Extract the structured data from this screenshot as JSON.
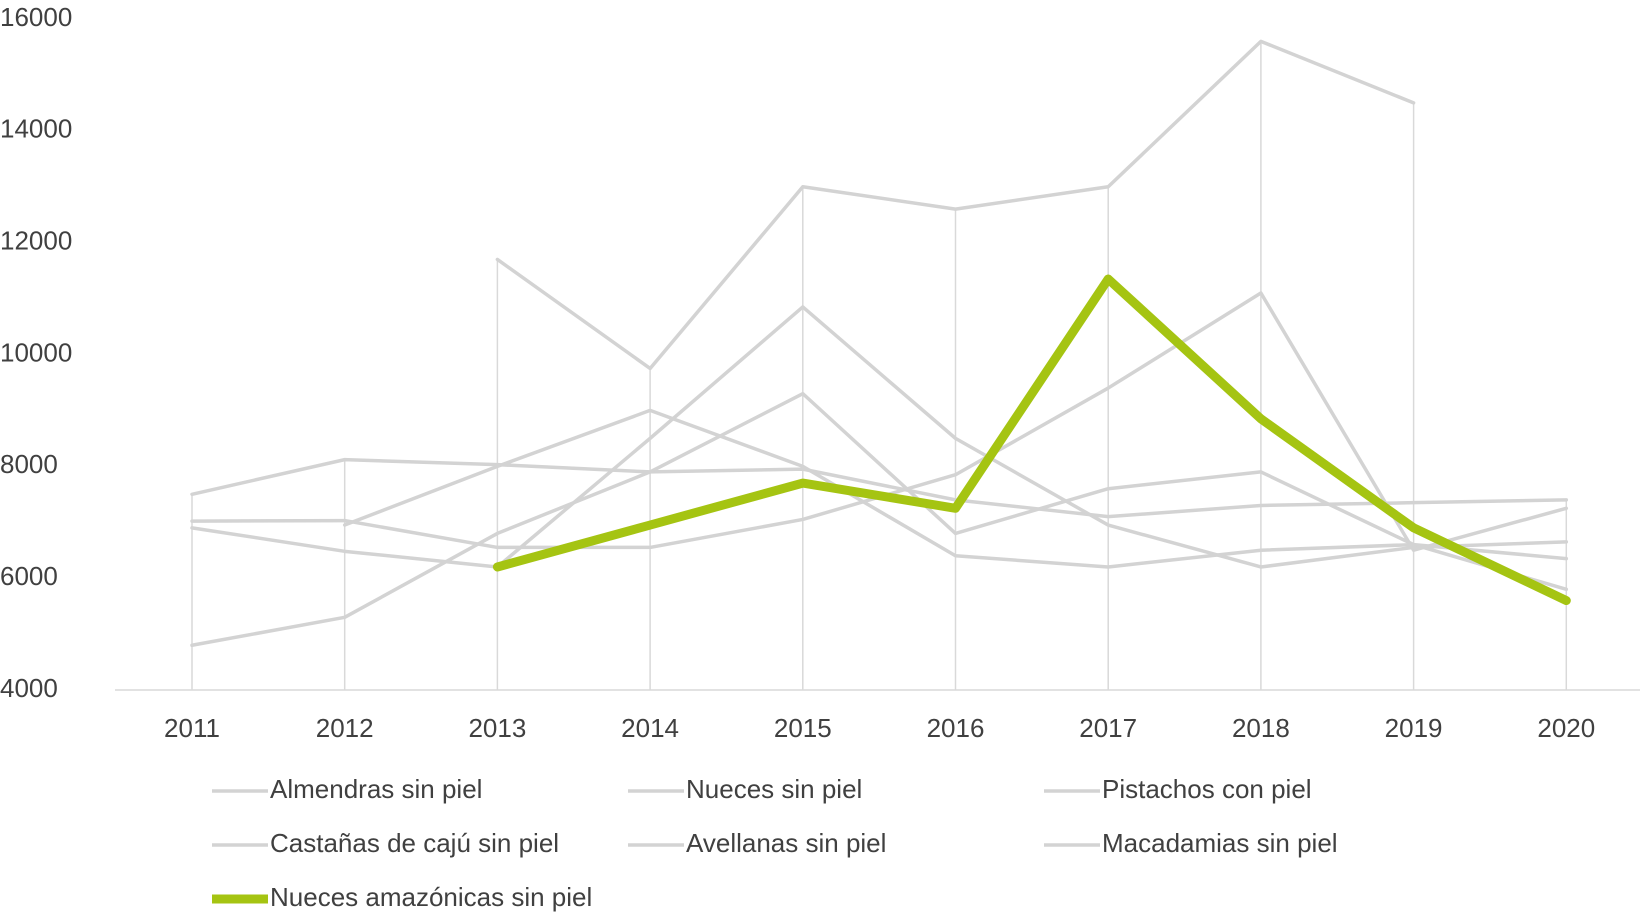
{
  "chart_data": {
    "type": "line",
    "categories": [
      "2011",
      "2012",
      "2013",
      "2014",
      "2015",
      "2016",
      "2017",
      "2018",
      "2019",
      "2020"
    ],
    "series": [
      {
        "name": "Almendras sin piel",
        "color": "#d3d3d3",
        "values": [
          null,
          null,
          11700,
          9750,
          13000,
          12600,
          13000,
          15600,
          14500,
          null
        ]
      },
      {
        "name": "Nueces sin piel",
        "color": "#d3d3d3",
        "values": [
          7500,
          8120,
          8030,
          7900,
          7950,
          7400,
          7100,
          7300,
          7350,
          7400
        ]
      },
      {
        "name": "Pistachos con piel",
        "color": "#d3d3d3",
        "values": [
          7020,
          7030,
          6550,
          6550,
          7050,
          7850,
          9400,
          11100,
          6500,
          7250
        ]
      },
      {
        "name": "Castañas de cajú sin piel",
        "color": "#d3d3d3",
        "values": [
          6900,
          6480,
          6200,
          8500,
          10850,
          8500,
          6950,
          6200,
          6550,
          6650
        ]
      },
      {
        "name": "Avellanas sin piel",
        "color": "#d3d3d3",
        "values": [
          null,
          6950,
          8000,
          9000,
          8000,
          6400,
          6200,
          6500,
          6600,
          5800
        ]
      },
      {
        "name": "Macadamias sin piel",
        "color": "#d3d3d3",
        "values": [
          4800,
          5300,
          6800,
          7900,
          9300,
          6800,
          7600,
          7900,
          6600,
          6350
        ]
      },
      {
        "name": "Nueces amazónicas sin piel",
        "color": "#a5c412",
        "values": [
          null,
          null,
          6200,
          6950,
          7700,
          7250,
          11350,
          8850,
          6900,
          5600
        ]
      }
    ],
    "ylim": [
      4000,
      16000
    ],
    "yticks": [
      4000,
      6000,
      8000,
      10000,
      12000,
      14000,
      16000
    ]
  }
}
